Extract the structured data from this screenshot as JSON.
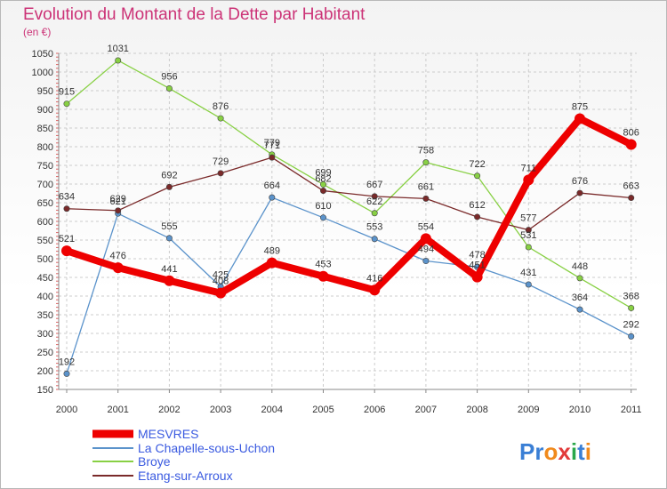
{
  "chart_data": {
    "type": "line",
    "title": "Evolution du Montant de la Dette par Habitant",
    "subtitle": "(en €)",
    "x": [
      "2000",
      "2001",
      "2002",
      "2003",
      "2004",
      "2005",
      "2006",
      "2007",
      "2008",
      "2009",
      "2010",
      "2011"
    ],
    "ylim": [
      150,
      1050
    ],
    "yticks": [
      150,
      200,
      250,
      300,
      350,
      400,
      450,
      500,
      550,
      600,
      650,
      700,
      750,
      800,
      850,
      900,
      950,
      1000,
      1050
    ],
    "grid": true,
    "legend_position": "bottom-left",
    "series": [
      {
        "name": "MESVRES",
        "color": "#ee0000",
        "values": [
          521,
          476,
          441,
          408,
          489,
          453,
          416,
          554,
          451,
          711,
          875,
          806
        ]
      },
      {
        "name": "La Chapelle-sous-Uchon",
        "color": "#5b93cb",
        "values": [
          192,
          621,
          555,
          425,
          664,
          610,
          553,
          494,
          478,
          431,
          364,
          292
        ]
      },
      {
        "name": "Broye",
        "color": "#88d044",
        "values": [
          915,
          1031,
          956,
          876,
          779,
          699,
          622,
          758,
          722,
          531,
          448,
          368
        ]
      },
      {
        "name": "Etang-sur-Arroux",
        "color": "#7a2a2a",
        "values": [
          634,
          629,
          692,
          729,
          771,
          682,
          667,
          661,
          612,
          577,
          676,
          663
        ]
      }
    ]
  },
  "logo": {
    "text": "Proxiti"
  }
}
